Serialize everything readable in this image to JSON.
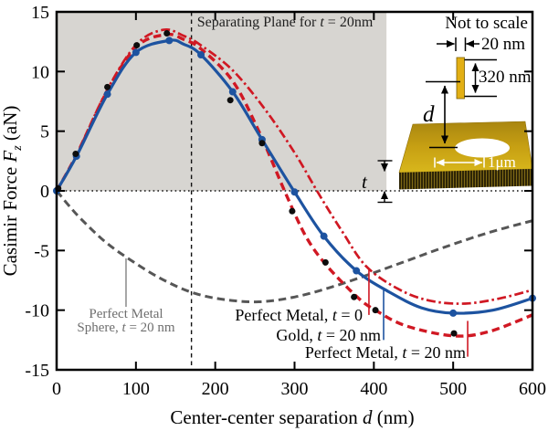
{
  "colors": {
    "red": "#d01823",
    "blue": "#1d53a0",
    "sphere_gray": "#565656",
    "scatter_black": "#0d0d0d",
    "shaded_region": "#d7d5d1",
    "annotation_gray": "#8a8a8a",
    "gold_bar": "#e2af14",
    "gold_plate_back": "#a98610",
    "gold_plate_front": "#d8b71c",
    "plate_edge_dark": "#2e2506",
    "plate_edge_hatch": "#806a16"
  },
  "chart_data": {
    "type": "line",
    "title": "",
    "xlabel": "Center-center separation d (nm)",
    "ylabel": "Casimir Force Fz (aN)",
    "xlabel_parts": [
      "Center-center separation ",
      "d",
      " (nm)"
    ],
    "ylabel_parts": [
      "Casimir Force ",
      "F",
      "z",
      " (aN)"
    ],
    "xlim": [
      0,
      600
    ],
    "ylim": [
      -15,
      15
    ],
    "x_ticks": [
      0,
      100,
      200,
      300,
      400,
      500,
      600
    ],
    "y_ticks": [
      15,
      10,
      5,
      0,
      -5,
      -10,
      -15
    ],
    "grid": "off",
    "zero_line_y": 0,
    "separating_plane": {
      "x": 170,
      "label_parts": [
        "Separating Plane for ",
        "t",
        " = 20nm"
      ]
    },
    "shaded_region": {
      "x_range": [
        0,
        416
      ],
      "y_range": [
        0,
        15
      ]
    },
    "series": [
      {
        "name": "Perfect Metal Sphere, t = 20 nm",
        "style": "dashed",
        "color": "#565656",
        "width": 3.0,
        "points": [
          [
            0,
            0
          ],
          [
            15,
            -1.2
          ],
          [
            30,
            -2.3
          ],
          [
            60,
            -4.2
          ],
          [
            91,
            -5.7
          ],
          [
            130,
            -7.3
          ],
          [
            170,
            -8.5
          ],
          [
            210,
            -9.1
          ],
          [
            255,
            -9.3
          ],
          [
            300,
            -8.9
          ],
          [
            345,
            -8.1
          ],
          [
            390,
            -7.1
          ],
          [
            440,
            -5.9
          ],
          [
            490,
            -4.7
          ],
          [
            545,
            -3.5
          ],
          [
            600,
            -2.5
          ]
        ]
      },
      {
        "name": "Perfect Metal, t = 20 nm",
        "style": "dashed",
        "color": "#d01823",
        "width": 3.4,
        "points": [
          [
            0,
            0
          ],
          [
            25,
            3.0
          ],
          [
            64,
            8.4
          ],
          [
            101,
            12.1
          ],
          [
            138,
            13.1
          ],
          [
            160,
            12.7
          ],
          [
            182,
            11.9
          ],
          [
            222,
            9.2
          ],
          [
            255,
            5.0
          ],
          [
            290,
            -0.4
          ],
          [
            315,
            -3.9
          ],
          [
            341,
            -6.3
          ],
          [
            379,
            -8.9
          ],
          [
            402,
            -10.0
          ],
          [
            440,
            -11.3
          ],
          [
            500,
            -12.15
          ],
          [
            545,
            -11.8
          ],
          [
            600,
            -10.4
          ]
        ]
      },
      {
        "name": "Perfect Metal, t = 0",
        "style": "dashdot",
        "color": "#d01823",
        "width": 2.7,
        "points": [
          [
            0,
            0
          ],
          [
            25,
            3.0
          ],
          [
            64,
            8.5
          ],
          [
            101,
            12.3
          ],
          [
            135,
            13.5
          ],
          [
            160,
            13.0
          ],
          [
            182,
            12.2
          ],
          [
            222,
            10.1
          ],
          [
            262,
            6.9
          ],
          [
            300,
            3.2
          ],
          [
            330,
            -0.2
          ],
          [
            360,
            -3.4
          ],
          [
            390,
            -6.3
          ],
          [
            430,
            -8.2
          ],
          [
            470,
            -9.2
          ],
          [
            515,
            -9.45
          ],
          [
            560,
            -9.0
          ],
          [
            600,
            -8.3
          ]
        ]
      },
      {
        "name": "Gold, t = 20 nm",
        "style": "solid",
        "color": "#1d53a0",
        "width": 3.2,
        "points": [
          [
            0,
            0
          ],
          [
            25,
            2.9
          ],
          [
            64,
            8.1
          ],
          [
            100,
            11.6
          ],
          [
            142,
            12.6
          ],
          [
            160,
            12.3
          ],
          [
            182,
            11.4
          ],
          [
            222,
            8.3
          ],
          [
            259,
            4.3
          ],
          [
            300,
            -0.1
          ],
          [
            337,
            -3.8
          ],
          [
            378,
            -6.7
          ],
          [
            420,
            -8.5
          ],
          [
            460,
            -9.8
          ],
          [
            500,
            -10.25
          ],
          [
            550,
            -10.0
          ],
          [
            600,
            -9.0
          ]
        ],
        "marker_points": [
          [
            0,
            0
          ],
          [
            25,
            2.9
          ],
          [
            64,
            8.1
          ],
          [
            100,
            11.6
          ],
          [
            142,
            12.6
          ],
          [
            182,
            11.4
          ],
          [
            222,
            8.3
          ],
          [
            259,
            4.3
          ],
          [
            300,
            -0.1
          ],
          [
            337,
            -3.8
          ],
          [
            378,
            -6.7
          ],
          [
            500,
            -10.25
          ],
          [
            600,
            -9.0
          ]
        ]
      },
      {
        "name": "exact data points",
        "type": "scatter",
        "style": "scatter",
        "color": "#0d0d0d",
        "points": [
          [
            2,
            0.2
          ],
          [
            24,
            3.1
          ],
          [
            64,
            8.7
          ],
          [
            101,
            12.2
          ],
          [
            139,
            13.2
          ],
          [
            219,
            7.6
          ],
          [
            259,
            4.0
          ],
          [
            297,
            -1.7
          ],
          [
            339,
            -6.0
          ],
          [
            375,
            -8.9
          ],
          [
            402,
            -10.0
          ],
          [
            501,
            -11.95
          ]
        ]
      }
    ],
    "annotations": [
      {
        "name": "sphere-label-pointer",
        "x": 87.5,
        "f_from": -5.66,
        "f_to": -9.72,
        "color": "#8a8a8a",
        "width": 1.5
      },
      {
        "name": "perfect-metal-t0-pointer",
        "x": 393.8,
        "f_from": -6.5,
        "f_to": -10.4,
        "color": "#d01823",
        "width": 1.6
      },
      {
        "name": "gold-pointer",
        "x": 412.3,
        "f_from": -8.3,
        "f_to": -12.5,
        "color": "#1d53a0",
        "width": 1.6
      },
      {
        "name": "perfect-metal-t20-pointer",
        "x": 518.3,
        "f_from": -10.9,
        "f_to": -13.9,
        "color": "#d01823",
        "width": 1.6
      }
    ]
  },
  "legend": {
    "perfect_metal_t0": {
      "parts": [
        "Perfect Metal, ",
        "t",
        " = 0"
      ],
      "color": "#d01823"
    },
    "gold": {
      "parts": [
        "Gold, ",
        "t",
        " = 20 nm"
      ],
      "color": "#1d53a0"
    },
    "perfect_metal_t20": {
      "parts": [
        "Perfect Metal, ",
        "t",
        " = 20 nm"
      ],
      "color": "#d01823"
    },
    "sphere_line1": "Perfect Metal",
    "sphere_line2_parts": [
      "Sphere, ",
      "t",
      " = 20 nm"
    ]
  },
  "inset": {
    "not_to_scale": "Not to scale",
    "bar_width_label": "20 nm",
    "bar_height_label": "320 nm",
    "distance_label": "d",
    "hole_label": "1μm",
    "thickness_label": "t"
  }
}
